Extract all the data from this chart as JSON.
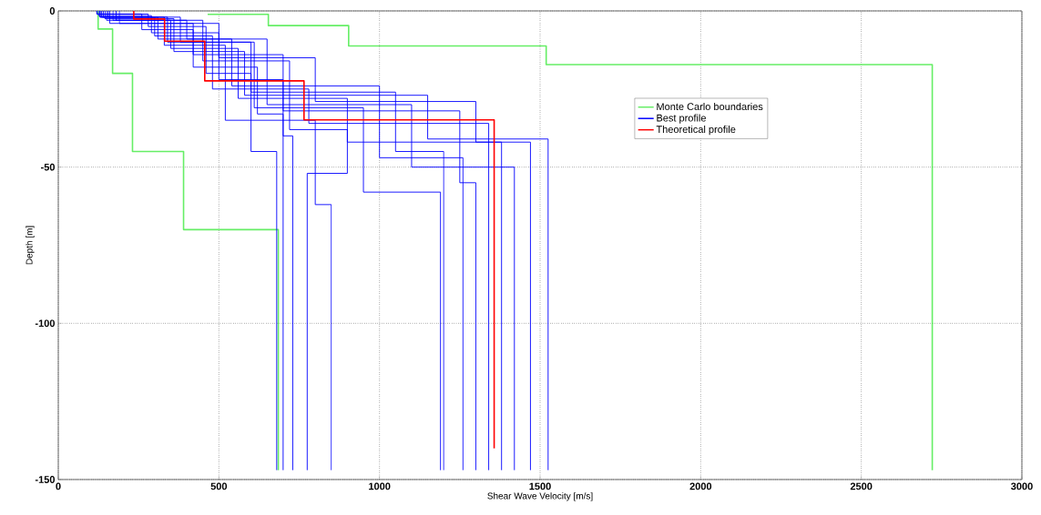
{
  "chart_data": {
    "type": "line",
    "xlabel": "Shear Wave Velocity [m/s]",
    "ylabel": "Depth [m]",
    "xlim": [
      0,
      3000
    ],
    "xticks": [
      0,
      500,
      1000,
      1500,
      2000,
      2500,
      3000
    ],
    "ylim": [
      -150,
      0
    ],
    "yticks": [
      -150,
      -100,
      -50,
      0
    ],
    "grid": true,
    "legend": "top right",
    "marker": "none",
    "series": [
      {
        "name": "Monte Carlo boundaries",
        "color": "#66ee66",
        "x": [
          124,
          124,
          169,
          169,
          231,
          231,
          390,
          390,
          685,
          685
        ],
        "values": [
          0,
          -5.8,
          -5.8,
          -20,
          -20,
          -45,
          -45,
          -70,
          -70,
          -147
        ]
      },
      {
        "color": "#66ee66",
        "x": [
          465,
          654,
          654,
          904,
          904,
          1519,
          1519,
          2721,
          2721
        ],
        "values": [
          -1.1,
          -1.1,
          -4.7,
          -4.7,
          -11.2,
          -11.2,
          -17.2,
          -17.2,
          -147
        ]
      },
      {
        "name": "Best profile",
        "color": "#0000ff",
        "x": [
          130,
          130,
          300,
          300,
          480,
          480,
          780,
          780,
          1340,
          1340
        ],
        "values": [
          0,
          -2,
          -2,
          -8,
          -8,
          -25,
          -25,
          -36,
          -36,
          -147
        ]
      },
      {
        "color": "#0000ff",
        "x": [
          150,
          150,
          350,
          350,
          560,
          560,
          900,
          900,
          1470,
          1470
        ],
        "values": [
          0,
          -3,
          -3,
          -12,
          -12,
          -28,
          -28,
          -42,
          -42,
          -147
        ]
      },
      {
        "color": "#0000ff",
        "x": [
          120,
          120,
          260,
          260,
          420,
          420,
          620,
          620,
          700,
          700
        ],
        "values": [
          0,
          -1,
          -1,
          -6,
          -6,
          -18,
          -18,
          -33,
          -33,
          -147
        ]
      },
      {
        "color": "#0000ff",
        "x": [
          140,
          140,
          380,
          380,
          600,
          600,
          1050,
          1050,
          1200,
          1200
        ],
        "values": [
          0,
          -2,
          -2,
          -10,
          -10,
          -26,
          -26,
          -45,
          -45,
          -147
        ]
      },
      {
        "color": "#0000ff",
        "x": [
          160,
          160,
          420,
          420,
          700,
          700,
          1250,
          1250,
          1300,
          1300
        ],
        "values": [
          0,
          -4,
          -4,
          -14,
          -14,
          -32,
          -32,
          -55,
          -55,
          -147
        ]
      },
      {
        "color": "#0000ff",
        "x": [
          125,
          125,
          290,
          290,
          500,
          500,
          700,
          700,
          730,
          730
        ],
        "values": [
          0,
          -1.5,
          -1.5,
          -7,
          -7,
          -22,
          -22,
          -40,
          -40,
          -147
        ]
      },
      {
        "color": "#0000ff",
        "x": [
          180,
          180,
          400,
          400,
          650,
          650,
          1100,
          1100,
          1420,
          1420
        ],
        "values": [
          0,
          -3,
          -3,
          -9,
          -9,
          -30,
          -30,
          -50,
          -50,
          -147
        ]
      },
      {
        "color": "#0000ff",
        "x": [
          135,
          135,
          330,
          330,
          520,
          520,
          800,
          800,
          850,
          850
        ],
        "values": [
          0,
          -2,
          -2,
          -11,
          -11,
          -35,
          -35,
          -62,
          -62,
          -147
        ]
      },
      {
        "color": "#0000ff",
        "x": [
          145,
          145,
          360,
          360,
          580,
          580,
          1150,
          1150,
          1525,
          1525
        ],
        "values": [
          0,
          -2.5,
          -2.5,
          -13,
          -13,
          -27,
          -27,
          -41,
          -41,
          -147
        ]
      },
      {
        "color": "#0000ff",
        "x": [
          170,
          170,
          450,
          450,
          720,
          720,
          900,
          900,
          775,
          775
        ],
        "values": [
          0,
          -3,
          -3,
          -16,
          -16,
          -38,
          -38,
          -52,
          -52,
          -147
        ]
      },
      {
        "color": "#0000ff",
        "x": [
          155,
          155,
          310,
          310,
          540,
          540,
          1000,
          1000,
          1260,
          1260
        ],
        "values": [
          0,
          -2,
          -2,
          -9,
          -9,
          -24,
          -24,
          -47,
          -47,
          -147
        ]
      },
      {
        "color": "#0000ff",
        "x": [
          120,
          120,
          280,
          280,
          460,
          460,
          600,
          600,
          680,
          680
        ],
        "values": [
          0,
          -1,
          -1,
          -5,
          -5,
          -20,
          -20,
          -45,
          -45,
          -147
        ]
      },
      {
        "color": "#0000ff",
        "x": [
          190,
          190,
          500,
          500,
          800,
          800,
          1300,
          1300,
          1380,
          1380
        ],
        "values": [
          0,
          -4,
          -4,
          -15,
          -15,
          -29,
          -29,
          -42,
          -42,
          -147
        ]
      },
      {
        "color": "#0000ff",
        "x": [
          130,
          130,
          340,
          340,
          610,
          610,
          950,
          950,
          1190,
          1190
        ],
        "values": [
          0,
          -2,
          -2,
          -10,
          -10,
          -31,
          -31,
          -58,
          -58,
          -147
        ]
      },
      {
        "name": "Theoretical profile",
        "color": "#ff0000",
        "x": [
          235,
          235,
          331,
          331,
          456,
          456,
          765,
          765,
          1357,
          1357
        ],
        "values": [
          0,
          -2.6,
          -2.6,
          -9.7,
          -9.7,
          -22.4,
          -22.4,
          -34.9,
          -34.9,
          -140
        ]
      }
    ]
  }
}
